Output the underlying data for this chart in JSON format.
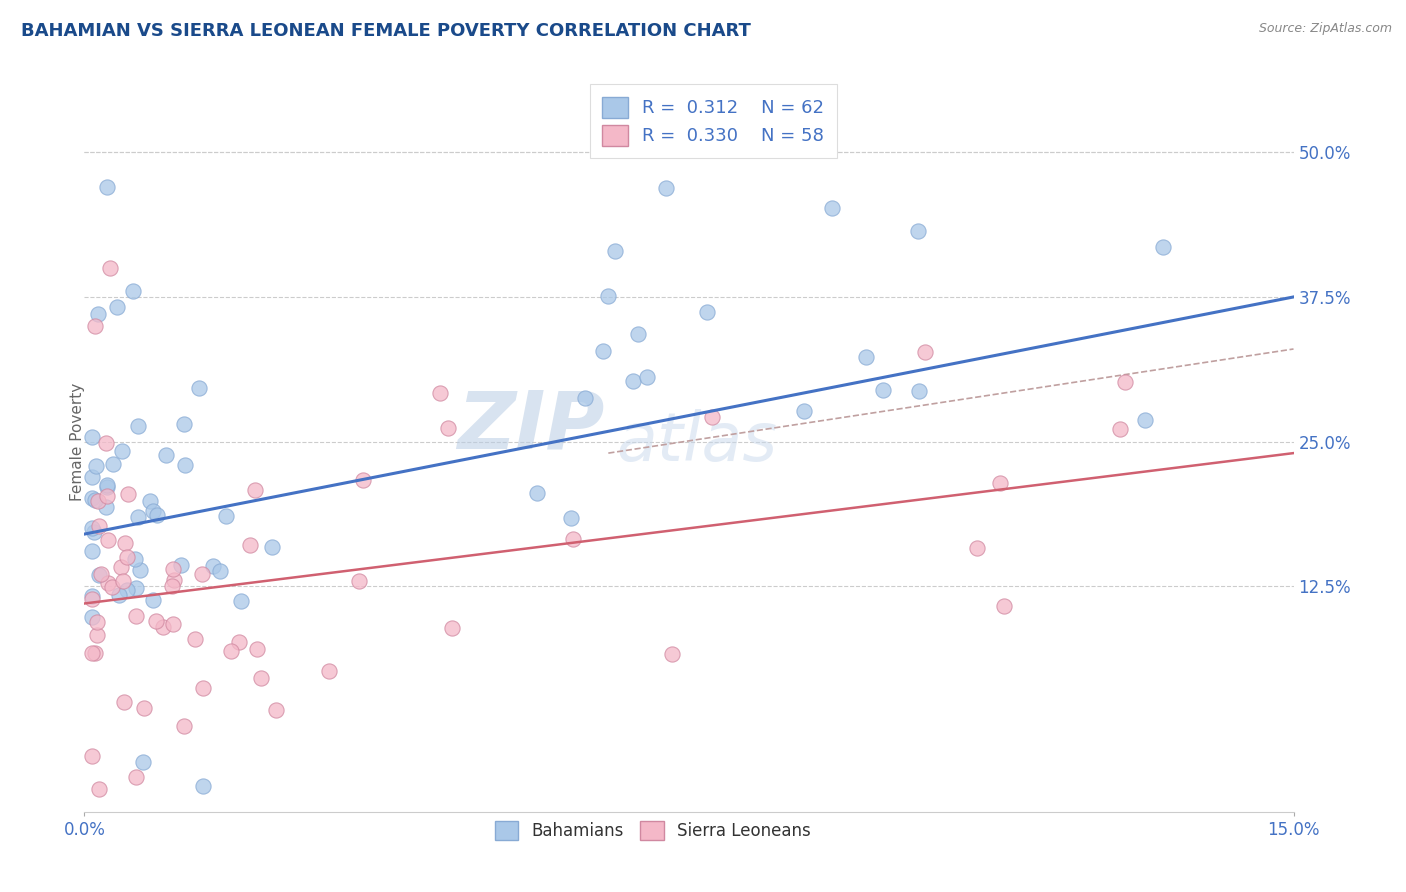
{
  "title": "BAHAMIAN VS SIERRA LEONEAN FEMALE POVERTY CORRELATION CHART",
  "source_text": "Source: ZipAtlas.com",
  "ylabel": "Female Poverty",
  "xlim": [
    0.0,
    0.15
  ],
  "ylim": [
    -0.07,
    0.57
  ],
  "yticks": [
    0.125,
    0.25,
    0.375,
    0.5
  ],
  "ytick_labels": [
    "12.5%",
    "25.0%",
    "37.5%",
    "50.0%"
  ],
  "xtick_labels": [
    "0.0%",
    "15.0%"
  ],
  "blue_color": "#aac8e8",
  "pink_color": "#f4b8c8",
  "trend_blue": "#4472c4",
  "trend_pink": "#d06070",
  "trend_gray": "#c0a0a0",
  "grid_color": "#cccccc",
  "background_color": "#ffffff",
  "legend_R_blue": "0.312",
  "legend_N_blue": "62",
  "legend_R_pink": "0.330",
  "legend_N_pink": "58",
  "watermark_zip": "ZIP",
  "watermark_atlas": "atlas",
  "blue_line_x0": 0.0,
  "blue_line_y0": 0.17,
  "blue_line_x1": 0.15,
  "blue_line_y1": 0.375,
  "pink_line_x0": 0.0,
  "pink_line_y0": 0.11,
  "pink_line_x1": 0.15,
  "pink_line_y1": 0.24,
  "gray_line_x0": 0.065,
  "gray_line_y0": 0.24,
  "gray_line_x1": 0.15,
  "gray_line_y1": 0.33
}
